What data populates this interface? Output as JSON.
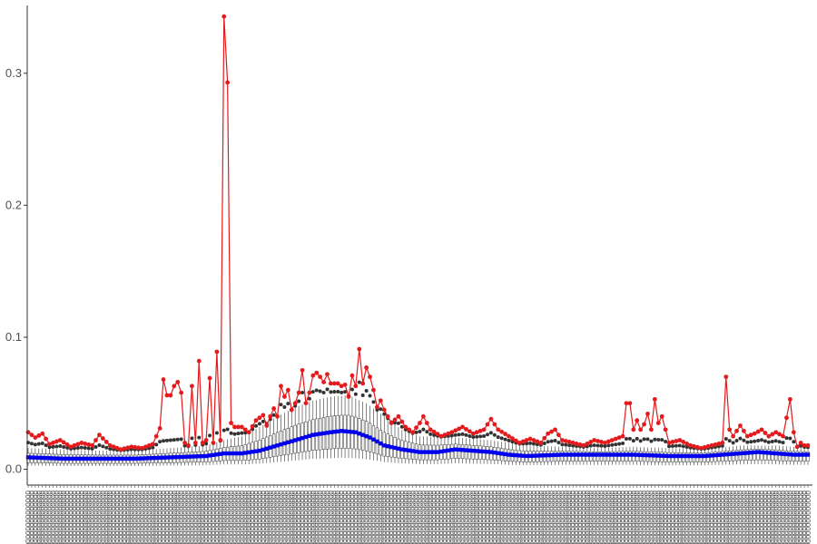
{
  "chart_data": {
    "type": "line",
    "title": "",
    "xlabel": "",
    "ylabel": "",
    "ylim": [
      -0.012,
      0.35
    ],
    "y_ticks": [
      0.0,
      0.1,
      0.2,
      0.3
    ],
    "y_tick_labels": [
      "0.0",
      "0.1",
      "0.2",
      "0.3"
    ],
    "x_count": 220,
    "x_tick_text": "0000000000000000000",
    "grid": false,
    "legend": "none",
    "box_color": "#333333",
    "max_color": "#e41a1c",
    "median_color": "#0000ee",
    "max_series": {
      "name": "",
      "anchors": [
        [
          0,
          0.028
        ],
        [
          2,
          0.024
        ],
        [
          4,
          0.027
        ],
        [
          6,
          0.019
        ],
        [
          9,
          0.022
        ],
        [
          12,
          0.017
        ],
        [
          15,
          0.02
        ],
        [
          18,
          0.018
        ],
        [
          20,
          0.026
        ],
        [
          23,
          0.018
        ],
        [
          26,
          0.015
        ],
        [
          29,
          0.017
        ],
        [
          32,
          0.016
        ],
        [
          35,
          0.019
        ],
        [
          37,
          0.031
        ],
        [
          38,
          0.068
        ],
        [
          39,
          0.056
        ],
        [
          40,
          0.056
        ],
        [
          41,
          0.063
        ],
        [
          42,
          0.066
        ],
        [
          43,
          0.058
        ],
        [
          44,
          0.02
        ],
        [
          45,
          0.018
        ],
        [
          46,
          0.063
        ],
        [
          47,
          0.02
        ],
        [
          48,
          0.082
        ],
        [
          49,
          0.02
        ],
        [
          50,
          0.022
        ],
        [
          51,
          0.069
        ],
        [
          52,
          0.02
        ],
        [
          53,
          0.089
        ],
        [
          54,
          0.022
        ],
        [
          55,
          0.343
        ],
        [
          56,
          0.293
        ],
        [
          57,
          0.035
        ],
        [
          58,
          0.032
        ],
        [
          60,
          0.032
        ],
        [
          62,
          0.028
        ],
        [
          64,
          0.037
        ],
        [
          66,
          0.041
        ],
        [
          67,
          0.033
        ],
        [
          68,
          0.04
        ],
        [
          69,
          0.046
        ],
        [
          70,
          0.04
        ],
        [
          71,
          0.063
        ],
        [
          72,
          0.055
        ],
        [
          73,
          0.06
        ],
        [
          74,
          0.045
        ],
        [
          75,
          0.05
        ],
        [
          76,
          0.058
        ],
        [
          77,
          0.075
        ],
        [
          78,
          0.05
        ],
        [
          79,
          0.058
        ],
        [
          80,
          0.071
        ],
        [
          81,
          0.073
        ],
        [
          82,
          0.07
        ],
        [
          83,
          0.066
        ],
        [
          84,
          0.072
        ],
        [
          85,
          0.065
        ],
        [
          86,
          0.065
        ],
        [
          87,
          0.065
        ],
        [
          88,
          0.063
        ],
        [
          89,
          0.064
        ],
        [
          90,
          0.055
        ],
        [
          91,
          0.071
        ],
        [
          92,
          0.063
        ],
        [
          93,
          0.091
        ],
        [
          94,
          0.065
        ],
        [
          95,
          0.077
        ],
        [
          96,
          0.07
        ],
        [
          97,
          0.06
        ],
        [
          98,
          0.047
        ],
        [
          99,
          0.052
        ],
        [
          100,
          0.045
        ],
        [
          102,
          0.035
        ],
        [
          104,
          0.04
        ],
        [
          106,
          0.032
        ],
        [
          108,
          0.028
        ],
        [
          110,
          0.035
        ],
        [
          111,
          0.04
        ],
        [
          113,
          0.03
        ],
        [
          116,
          0.025
        ],
        [
          119,
          0.028
        ],
        [
          122,
          0.032
        ],
        [
          125,
          0.027
        ],
        [
          128,
          0.03
        ],
        [
          130,
          0.038
        ],
        [
          132,
          0.03
        ],
        [
          135,
          0.025
        ],
        [
          138,
          0.02
        ],
        [
          141,
          0.023
        ],
        [
          144,
          0.02
        ],
        [
          146,
          0.027
        ],
        [
          148,
          0.03
        ],
        [
          150,
          0.022
        ],
        [
          153,
          0.02
        ],
        [
          156,
          0.018
        ],
        [
          159,
          0.022
        ],
        [
          162,
          0.02
        ],
        [
          165,
          0.023
        ],
        [
          167,
          0.025
        ],
        [
          168,
          0.05
        ],
        [
          169,
          0.05
        ],
        [
          170,
          0.03
        ],
        [
          171,
          0.037
        ],
        [
          172,
          0.03
        ],
        [
          173,
          0.034
        ],
        [
          174,
          0.042
        ],
        [
          175,
          0.03
        ],
        [
          176,
          0.053
        ],
        [
          177,
          0.035
        ],
        [
          178,
          0.04
        ],
        [
          180,
          0.02
        ],
        [
          183,
          0.022
        ],
        [
          186,
          0.018
        ],
        [
          189,
          0.016
        ],
        [
          192,
          0.018
        ],
        [
          195,
          0.02
        ],
        [
          196,
          0.07
        ],
        [
          197,
          0.03
        ],
        [
          198,
          0.025
        ],
        [
          200,
          0.033
        ],
        [
          202,
          0.025
        ],
        [
          204,
          0.027
        ],
        [
          206,
          0.03
        ],
        [
          208,
          0.025
        ],
        [
          210,
          0.028
        ],
        [
          212,
          0.025
        ],
        [
          214,
          0.053
        ],
        [
          215,
          0.028
        ],
        [
          216,
          0.017
        ],
        [
          217,
          0.02
        ],
        [
          218,
          0.018
        ],
        [
          219,
          0.018
        ]
      ]
    },
    "median_series": {
      "name": "",
      "anchors": [
        [
          0,
          0.009
        ],
        [
          10,
          0.008
        ],
        [
          20,
          0.008
        ],
        [
          30,
          0.008
        ],
        [
          40,
          0.009
        ],
        [
          50,
          0.01
        ],
        [
          55,
          0.012
        ],
        [
          60,
          0.012
        ],
        [
          65,
          0.014
        ],
        [
          70,
          0.018
        ],
        [
          75,
          0.022
        ],
        [
          80,
          0.026
        ],
        [
          85,
          0.028
        ],
        [
          88,
          0.029
        ],
        [
          92,
          0.028
        ],
        [
          96,
          0.024
        ],
        [
          100,
          0.018
        ],
        [
          105,
          0.015
        ],
        [
          110,
          0.013
        ],
        [
          115,
          0.013
        ],
        [
          120,
          0.015
        ],
        [
          125,
          0.014
        ],
        [
          130,
          0.013
        ],
        [
          135,
          0.011
        ],
        [
          140,
          0.01
        ],
        [
          150,
          0.011
        ],
        [
          160,
          0.011
        ],
        [
          170,
          0.011
        ],
        [
          180,
          0.01
        ],
        [
          190,
          0.01
        ],
        [
          195,
          0.011
        ],
        [
          200,
          0.012
        ],
        [
          205,
          0.013
        ],
        [
          210,
          0.012
        ],
        [
          215,
          0.011
        ],
        [
          219,
          0.011
        ]
      ]
    },
    "upper_whisker_series": {
      "name": "",
      "anchors": [
        [
          0,
          0.016
        ],
        [
          10,
          0.015
        ],
        [
          20,
          0.014
        ],
        [
          30,
          0.014
        ],
        [
          40,
          0.016
        ],
        [
          50,
          0.018
        ],
        [
          55,
          0.022
        ],
        [
          60,
          0.025
        ],
        [
          65,
          0.032
        ],
        [
          70,
          0.04
        ],
        [
          75,
          0.047
        ],
        [
          80,
          0.052
        ],
        [
          85,
          0.055
        ],
        [
          90,
          0.056
        ],
        [
          95,
          0.05
        ],
        [
          100,
          0.04
        ],
        [
          105,
          0.03
        ],
        [
          110,
          0.025
        ],
        [
          120,
          0.024
        ],
        [
          130,
          0.022
        ],
        [
          140,
          0.018
        ],
        [
          150,
          0.017
        ],
        [
          160,
          0.016
        ],
        [
          170,
          0.017
        ],
        [
          180,
          0.016
        ],
        [
          190,
          0.015
        ],
        [
          200,
          0.018
        ],
        [
          210,
          0.018
        ],
        [
          219,
          0.016
        ]
      ]
    }
  }
}
